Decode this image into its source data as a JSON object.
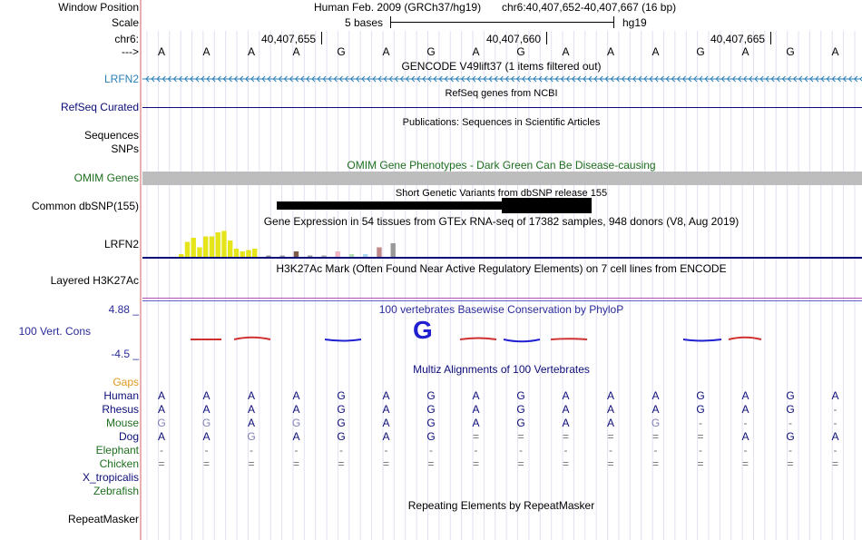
{
  "header": {
    "window_position_label": "Window Position",
    "assembly_text": "Human Feb. 2009 (GRCh37/hg19)",
    "position_text": "chr6:40,407,652-40,407,667 (16 bp)",
    "scale_label": "Scale",
    "scale_text": "5 bases",
    "scale_assembly": "hg19",
    "chrom_label": "chr6:",
    "coord_ticks": [
      "40,407,655",
      "40,407,660",
      "40,407,665"
    ],
    "strand_label": "--->"
  },
  "sequence": [
    "A",
    "A",
    "A",
    "A",
    "G",
    "A",
    "G",
    "A",
    "G",
    "A",
    "A",
    "A",
    "G",
    "A",
    "G",
    "A"
  ],
  "tracks": {
    "gencode": {
      "title": "GENCODE V49lift37 (1 items filtered out)",
      "label": "LRFN2",
      "label_color": "#2a7fb5"
    },
    "refseq": {
      "title": "RefSeq genes from NCBI",
      "label": "RefSeq Curated",
      "label_color": "#0c0c78"
    },
    "publications": {
      "title": "Publications: Sequences in Scientific Articles",
      "label1": "Sequences",
      "label2": "SNPs"
    },
    "omim": {
      "title": "OMIM Gene Phenotypes - Dark Green Can Be Disease-causing",
      "label": "OMIM Genes",
      "color": "#1e6e1e"
    },
    "dbsnp": {
      "title": "Short Genetic Variants from dbSNP release 155",
      "label": "Common dbSNP(155)"
    },
    "gtex": {
      "title": "Gene Expression in 54 tissues from GTEx RNA-seq of 17382 samples, 948 donors (V8, Aug 2019)",
      "label": "LRFN2",
      "bars": [
        {
          "v": 0.1,
          "c": "#e5e51a"
        },
        {
          "v": 0.55,
          "c": "#e5e51a"
        },
        {
          "v": 0.7,
          "c": "#e5e51a"
        },
        {
          "v": 0.35,
          "c": "#e5e51a"
        },
        {
          "v": 0.75,
          "c": "#e5e51a"
        },
        {
          "v": 0.75,
          "c": "#e5e51a"
        },
        {
          "v": 0.9,
          "c": "#e5e51a"
        },
        {
          "v": 0.95,
          "c": "#e5e51a"
        },
        {
          "v": 0.6,
          "c": "#e5e51a"
        },
        {
          "v": 0.3,
          "c": "#e5e51a"
        },
        {
          "v": 0.2,
          "c": "#e5e51a"
        },
        {
          "v": 0.25,
          "c": "#e5e51a"
        },
        {
          "v": 0.3,
          "c": "#e5e51a"
        },
        {
          "v": 0.05,
          "c": "#999999"
        },
        {
          "v": 0.05,
          "c": "#999999"
        },
        {
          "v": 0.2,
          "c": "#7d5a4a"
        },
        {
          "v": 0.05,
          "c": "#999999"
        },
        {
          "v": 0.05,
          "c": "#aaaaaa"
        },
        {
          "v": 0.2,
          "c": "#f2b6c6"
        },
        {
          "v": 0.1,
          "c": "#b7e0b2"
        },
        {
          "v": 0.1,
          "c": "#b0d8f0"
        },
        {
          "v": 0.35,
          "c": "#c08888"
        },
        {
          "v": 0.5,
          "c": "#999999"
        }
      ]
    },
    "h3k27ac": {
      "title": "H3K27Ac Mark (Often Found Near Active Regulatory Elements) on 7 cell lines from ENCODE",
      "label": "Layered H3K27Ac"
    },
    "phylop": {
      "title": "100 vertebrates Basewise Conservation by PhyloP",
      "label": "100 Vert. Cons",
      "max": "4.88 _",
      "min": "-4.5 _",
      "highlight_letter": "G",
      "color": "#2a2a9a"
    },
    "multiz": {
      "title": "Multiz Alignments of 100 Vertebrates",
      "gaps_label": "Gaps",
      "species": [
        {
          "name": "Human",
          "color": "#0c0c78",
          "bases": [
            "A",
            "A",
            "A",
            "A",
            "G",
            "A",
            "G",
            "A",
            "G",
            "A",
            "A",
            "A",
            "G",
            "A",
            "G",
            "A"
          ]
        },
        {
          "name": "Rhesus",
          "color": "#0c0c78",
          "bases": [
            "A",
            "A",
            "A",
            "A",
            "G",
            "A",
            "G",
            "A",
            "G",
            "A",
            "A",
            "A",
            "G",
            "A",
            "G",
            "-"
          ]
        },
        {
          "name": "Mouse",
          "color": "#1e6e1e",
          "bases": [
            "G",
            "G",
            "A",
            "G",
            "G",
            "A",
            "G",
            "A",
            "G",
            "A",
            "A",
            "G",
            "-",
            "-",
            "-",
            "-"
          ]
        },
        {
          "name": "Dog",
          "color": "#0c0c78",
          "bases": [
            "A",
            "A",
            "G",
            "A",
            "G",
            "A",
            "G",
            "=",
            "=",
            "=",
            "=",
            "=",
            "=",
            "A",
            "G",
            "A"
          ]
        },
        {
          "name": "Elephant",
          "color": "#1e6e1e",
          "bases": [
            "-",
            "-",
            "-",
            "-",
            "-",
            "-",
            "-",
            "-",
            "-",
            "-",
            "-",
            "-",
            "-",
            "-",
            "-",
            "-"
          ]
        },
        {
          "name": "Chicken",
          "color": "#1e6e1e",
          "bases": [
            "=",
            "=",
            "=",
            "=",
            "=",
            "=",
            "=",
            "=",
            "=",
            "=",
            "=",
            "=",
            "=",
            "=",
            "=",
            "="
          ]
        },
        {
          "name": "X_tropicalis",
          "color": "#0c0c78",
          "bases": []
        },
        {
          "name": "Zebrafish",
          "color": "#1e6e1e",
          "bases": []
        }
      ]
    },
    "repeatmasker": {
      "title": "Repeating Elements by RepeatMasker",
      "label": "RepeatMasker"
    }
  },
  "colors": {
    "guide": "#c8c8e8",
    "separator": "#d06060",
    "mismatch": "#8080b8"
  }
}
